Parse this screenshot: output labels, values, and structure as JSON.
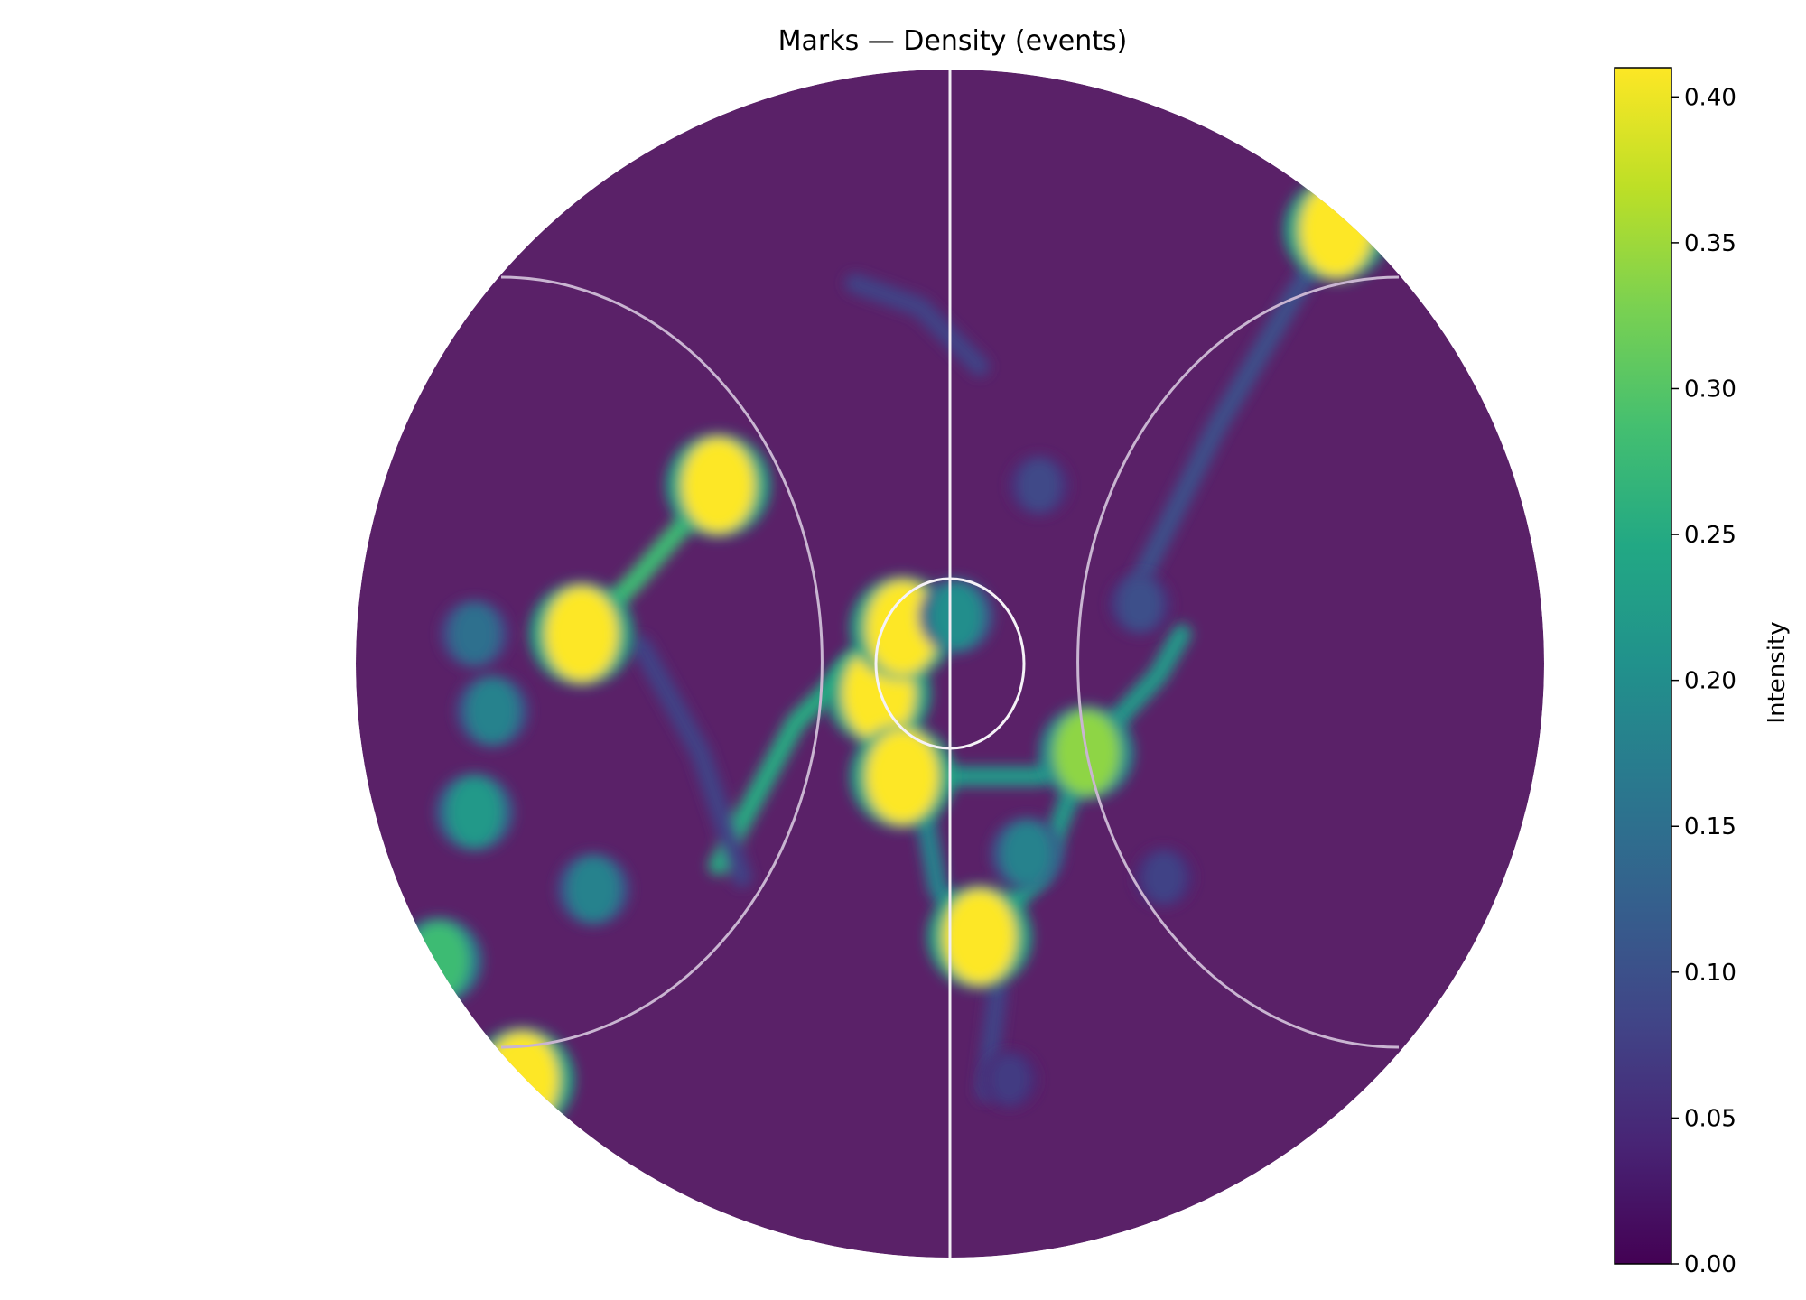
{
  "chart_data": {
    "type": "heatmap",
    "title": "Marks — Density (events)",
    "colorbar": {
      "label": "Intensity",
      "min": 0.0,
      "max": 0.41,
      "ticks": [
        0.0,
        0.05,
        0.1,
        0.15,
        0.2,
        0.25,
        0.3,
        0.35,
        0.4
      ],
      "tick_labels": [
        "0.00",
        "0.05",
        "0.10",
        "0.15",
        "0.20",
        "0.25",
        "0.30",
        "0.35",
        "0.40"
      ],
      "colormap": "viridis"
    },
    "field_markings": [
      "halfway-line",
      "center-circle",
      "left-arc",
      "right-arc"
    ],
    "hotspots": [
      {
        "x": -0.62,
        "y": 0.05,
        "value": 0.41
      },
      {
        "x": -0.39,
        "y": 0.3,
        "value": 0.41
      },
      {
        "x": -0.12,
        "y": -0.05,
        "value": 0.41
      },
      {
        "x": -0.08,
        "y": 0.06,
        "value": 0.41
      },
      {
        "x": -0.08,
        "y": -0.19,
        "value": 0.41
      },
      {
        "x": 0.05,
        "y": -0.46,
        "value": 0.41
      },
      {
        "x": 0.23,
        "y": -0.15,
        "value": 0.34
      },
      {
        "x": 0.65,
        "y": 0.73,
        "value": 0.41
      },
      {
        "x": -0.72,
        "y": -0.7,
        "value": 0.41
      },
      {
        "x": -0.86,
        "y": -0.5,
        "value": 0.28
      },
      {
        "x": -0.8,
        "y": -0.25,
        "value": 0.22
      },
      {
        "x": -0.77,
        "y": -0.08,
        "value": 0.18
      },
      {
        "x": -0.8,
        "y": 0.05,
        "value": 0.15
      },
      {
        "x": 0.01,
        "y": 0.08,
        "value": 0.2
      },
      {
        "x": 0.13,
        "y": -0.32,
        "value": 0.18
      },
      {
        "x": 0.15,
        "y": 0.3,
        "value": 0.09
      },
      {
        "x": 0.32,
        "y": 0.1,
        "value": 0.1
      },
      {
        "x": -0.6,
        "y": -0.38,
        "value": 0.18
      },
      {
        "x": 0.36,
        "y": -0.36,
        "value": 0.08
      },
      {
        "x": 0.1,
        "y": -0.7,
        "value": 0.07
      }
    ],
    "ridges": [
      {
        "path": [
          [
            -0.39,
            0.3
          ],
          [
            -0.53,
            0.14
          ],
          [
            -0.62,
            0.05
          ]
        ],
        "value": 0.28
      },
      {
        "path": [
          [
            -0.39,
            -0.34
          ],
          [
            -0.26,
            -0.1
          ],
          [
            -0.16,
            0.0
          ],
          [
            -0.12,
            -0.05
          ],
          [
            -0.08,
            -0.19
          ]
        ],
        "value": 0.25
      },
      {
        "path": [
          [
            -0.02,
            -0.19
          ],
          [
            0.15,
            -0.19
          ],
          [
            0.23,
            -0.15
          ],
          [
            0.35,
            -0.02
          ],
          [
            0.39,
            0.05
          ]
        ],
        "value": 0.22
      },
      {
        "path": [
          [
            0.23,
            -0.15
          ],
          [
            0.15,
            -0.36
          ],
          [
            0.05,
            -0.46
          ]
        ],
        "value": 0.22
      },
      {
        "path": [
          [
            -0.06,
            -0.16
          ],
          [
            -0.02,
            -0.38
          ],
          [
            0.05,
            -0.46
          ]
        ],
        "value": 0.18
      },
      {
        "path": [
          [
            0.3,
            0.1
          ],
          [
            0.45,
            0.4
          ],
          [
            0.58,
            0.62
          ],
          [
            0.65,
            0.73
          ]
        ],
        "value": 0.1
      },
      {
        "path": [
          [
            -0.16,
            0.64
          ],
          [
            -0.05,
            0.6
          ],
          [
            0.05,
            0.5
          ]
        ],
        "value": 0.08
      },
      {
        "path": [
          [
            -0.52,
            0.03
          ],
          [
            -0.42,
            -0.15
          ],
          [
            -0.35,
            -0.36
          ]
        ],
        "value": 0.08
      },
      {
        "path": [
          [
            0.08,
            -0.55
          ],
          [
            0.06,
            -0.72
          ]
        ],
        "value": 0.08
      }
    ]
  }
}
